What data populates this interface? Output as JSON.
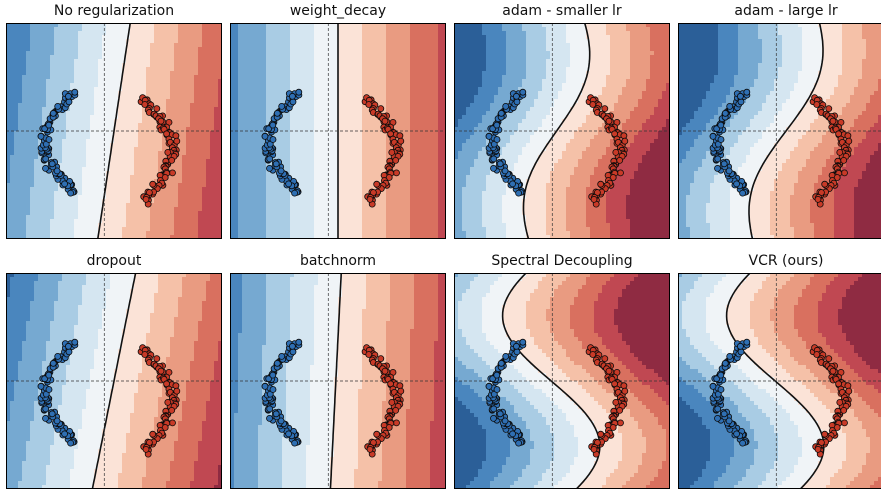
{
  "chart_data": [
    {
      "type": "contour-scatter",
      "title": "No regularization",
      "boundary": "straight",
      "tilt": 0.15,
      "shift": 0.0
    },
    {
      "type": "contour-scatter",
      "title": "weight_decay",
      "boundary": "straight",
      "tilt": 0.0,
      "shift": 0.0
    },
    {
      "type": "contour-scatter",
      "title": "adam - smaller lr",
      "boundary": "curved",
      "tilt": 0.2,
      "shift": -0.05
    },
    {
      "type": "contour-scatter",
      "title": "adam - large lr",
      "boundary": "curved",
      "tilt": 0.25,
      "shift": 0.0
    },
    {
      "type": "contour-scatter",
      "title": "dropout",
      "boundary": "straight",
      "tilt": 0.2,
      "shift": 0.0
    },
    {
      "type": "contour-scatter",
      "title": "batchnorm",
      "boundary": "straight",
      "tilt": 0.05,
      "shift": -0.02
    },
    {
      "type": "contour-scatter",
      "title": "Spectral Decoupling",
      "boundary": "s-shaped",
      "tilt": 0.0,
      "shift": 0.0
    },
    {
      "type": "contour-scatter",
      "title": "VCR (ours)",
      "boundary": "s-shaped",
      "tilt": 0.0,
      "shift": 0.0
    }
  ],
  "classes": [
    {
      "name": "blue",
      "color": "#2f6fb3"
    },
    {
      "name": "red",
      "color": "#c83a27"
    }
  ],
  "colors": {
    "levels": [
      "#2b5f98",
      "#4a86be",
      "#76a9d1",
      "#a9cce4",
      "#d5e6f1",
      "#f0f4f7",
      "#fbe3d7",
      "#f5c1a8",
      "#e99b81",
      "#d9705f",
      "#c04852",
      "#8f2b42"
    ],
    "boundary": "#111111",
    "crosshair": "#333333"
  }
}
